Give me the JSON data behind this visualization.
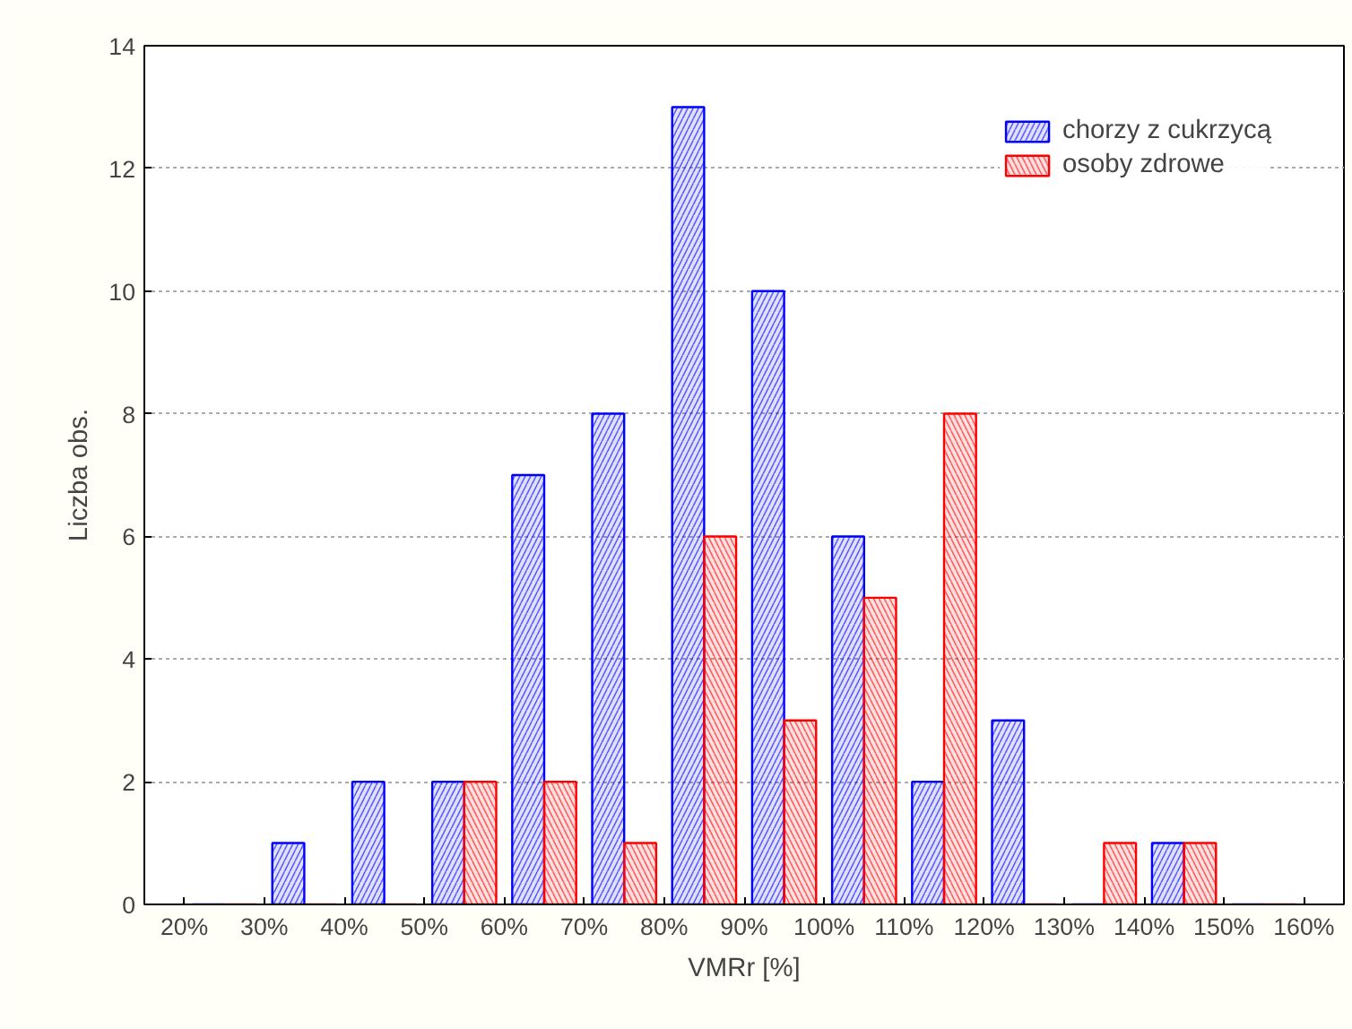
{
  "chart_data": {
    "type": "histogram",
    "xlabel": "VMRr [%]",
    "ylabel": "Liczba obs.",
    "bins": [
      20,
      30,
      40,
      50,
      60,
      70,
      80,
      90,
      100,
      110,
      120,
      130,
      140,
      150,
      160
    ],
    "series": [
      {
        "name": "chorzy z cukrzycą",
        "color": "#0000ff",
        "values": [
          0,
          1,
          2,
          2,
          7,
          8,
          13,
          10,
          6,
          2,
          3,
          0,
          1,
          0
        ]
      },
      {
        "name": "osoby zdrowe",
        "color": "#ff0000",
        "values": [
          0,
          0,
          0,
          2,
          2,
          1,
          6,
          3,
          5,
          8,
          0,
          1,
          1,
          0
        ]
      }
    ],
    "xlim": [
      15,
      165
    ],
    "xticks": [
      {
        "value": 20,
        "label": "20%"
      },
      {
        "value": 30,
        "label": "30%"
      },
      {
        "value": 40,
        "label": "40%"
      },
      {
        "value": 50,
        "label": "50%"
      },
      {
        "value": 60,
        "label": "60%"
      },
      {
        "value": 70,
        "label": "70%"
      },
      {
        "value": 80,
        "label": "80%"
      },
      {
        "value": 90,
        "label": "90%"
      },
      {
        "value": 100,
        "label": "100%"
      },
      {
        "value": 110,
        "label": "110%"
      },
      {
        "value": 120,
        "label": "120%"
      },
      {
        "value": 130,
        "label": "130%"
      },
      {
        "value": 140,
        "label": "140%"
      },
      {
        "value": 150,
        "label": "150%"
      },
      {
        "value": 160,
        "label": "160%"
      }
    ],
    "ylim": [
      0,
      14
    ],
    "yticks": [
      0,
      2,
      4,
      6,
      8,
      10,
      12,
      14
    ],
    "grid": "y",
    "legend": "top right"
  }
}
